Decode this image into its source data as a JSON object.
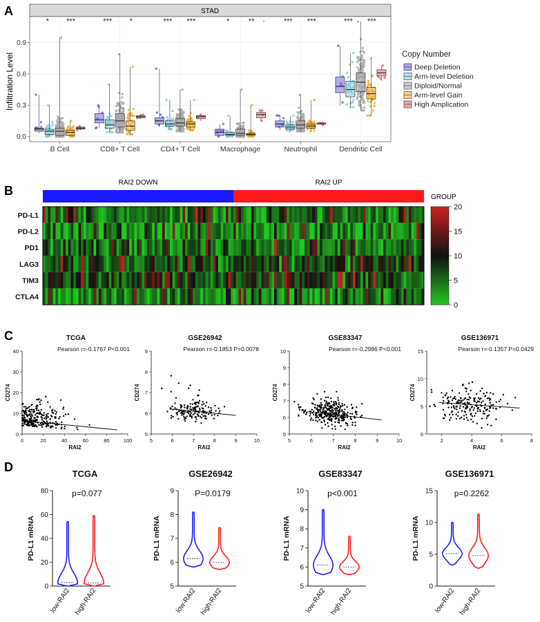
{
  "panels": {
    "A": {
      "letter": "A"
    },
    "B": {
      "letter": "B"
    },
    "C": {
      "letter": "C"
    },
    "D": {
      "letter": "D"
    }
  },
  "colors": {
    "deep": "#6b6be0",
    "arm_del": "#87cde0",
    "diploid": "#aaaaaa",
    "arm_gain": "#f0b030",
    "high": "#e86a6a",
    "down": "#1a1aff",
    "up": "#ff1a1a",
    "heat_low": "#22c722",
    "heat_mid": "#111111",
    "heat_high": "#cc2222"
  },
  "chart_data": [
    {
      "id": "A",
      "type": "box",
      "title": "STAD",
      "ylabel": "Infiltration Level",
      "ylim": [
        -0.05,
        1.15
      ],
      "yticks": [
        "0.0",
        "0.3",
        "0.6",
        "0.9"
      ],
      "categories": [
        "B Cell",
        "CD8+ T Cell",
        "CD4+ T Cell",
        "Macrophage",
        "Neutrophil",
        "Dendritic Cell"
      ],
      "significance": [
        [
          "*",
          "***"
        ],
        [
          "***",
          "*"
        ],
        [
          "***",
          "***"
        ],
        [
          "*",
          "**",
          "·"
        ],
        [
          "***",
          "***"
        ],
        [
          "***",
          "***"
        ]
      ],
      "legend_title": "Copy Number",
      "legend_position": "right",
      "series": [
        {
          "name": "Deep Deletion",
          "boxes": [
            [
              0.03,
              0.05,
              0.07,
              0.08,
              0.4
            ],
            [
              0.08,
              0.13,
              0.16,
              0.22,
              0.3
            ],
            [
              0.09,
              0.12,
              0.15,
              0.18,
              0.65
            ],
            [
              0.0,
              0.01,
              0.04,
              0.07,
              0.12
            ],
            [
              0.06,
              0.09,
              0.12,
              0.15,
              0.2
            ],
            [
              0.3,
              0.42,
              0.48,
              0.57,
              0.87
            ]
          ]
        },
        {
          "name": "Arm-level Deletion",
          "boxes": [
            [
              0.0,
              0.02,
              0.05,
              0.07,
              0.3
            ],
            [
              0.04,
              0.08,
              0.11,
              0.16,
              0.5
            ],
            [
              0.07,
              0.1,
              0.12,
              0.15,
              0.35
            ],
            [
              0.0,
              0.01,
              0.02,
              0.04,
              0.2
            ],
            [
              0.05,
              0.07,
              0.09,
              0.11,
              0.2
            ],
            [
              0.28,
              0.38,
              0.45,
              0.53,
              0.8
            ]
          ]
        },
        {
          "name": "Diploid/Normal",
          "boxes": [
            [
              0.0,
              0.01,
              0.05,
              0.08,
              0.95
            ],
            [
              0.04,
              0.09,
              0.15,
              0.22,
              0.79
            ],
            [
              0.05,
              0.1,
              0.13,
              0.17,
              0.45
            ],
            [
              0.0,
              0.01,
              0.03,
              0.07,
              0.45
            ],
            [
              0.05,
              0.08,
              0.11,
              0.15,
              0.4
            ],
            [
              0.25,
              0.43,
              0.52,
              0.61,
              1.1
            ]
          ]
        },
        {
          "name": "Arm-level Gain",
          "boxes": [
            [
              0.0,
              0.01,
              0.04,
              0.06,
              0.15
            ],
            [
              0.02,
              0.06,
              0.1,
              0.15,
              0.67
            ],
            [
              0.06,
              0.09,
              0.12,
              0.14,
              0.35
            ],
            [
              0.0,
              0.01,
              0.02,
              0.03,
              0.3
            ],
            [
              0.05,
              0.08,
              0.1,
              0.12,
              0.35
            ],
            [
              0.2,
              0.36,
              0.41,
              0.47,
              0.75
            ]
          ]
        },
        {
          "name": "High Amplication",
          "boxes": [
            [
              0.06,
              0.07,
              0.08,
              0.09,
              0.1
            ],
            [
              0.17,
              0.18,
              0.19,
              0.2,
              0.21
            ],
            [
              0.15,
              0.17,
              0.19,
              0.2,
              0.21
            ],
            [
              0.15,
              0.18,
              0.21,
              0.23,
              0.25
            ],
            [
              0.11,
              0.12,
              0.12,
              0.13,
              0.13
            ],
            [
              0.53,
              0.58,
              0.61,
              0.64,
              0.68
            ]
          ]
        }
      ]
    },
    {
      "id": "B",
      "type": "heatmap",
      "group_labels": [
        "RAI2 DOWN",
        "RAI2 UP"
      ],
      "group_legend": "GROUP",
      "rows": [
        "PD-L1",
        "PD-L2",
        "PD1",
        "LAG3",
        "TIM3",
        "CTLA4"
      ],
      "colorbar_ticks": [
        "20",
        "15",
        "10",
        "5",
        "0"
      ],
      "range": [
        0,
        20
      ]
    },
    {
      "id": "C",
      "type": "scatter",
      "plots": [
        {
          "title": "TCGA",
          "stat": "Pearson r=-0.1767 P<0.001",
          "xlabel": "RAI2",
          "ylabel": "CD274",
          "xticks": [
            "0",
            "20",
            "40",
            "60",
            "80",
            "100"
          ],
          "yticks": [
            "0",
            "10",
            "20",
            "30",
            "40"
          ],
          "xlim": [
            0,
            100
          ],
          "ylim": [
            0,
            40
          ],
          "line": [
            [
              0,
              6.5
            ],
            [
              90,
              2.0
            ]
          ]
        },
        {
          "title": "GSE26942",
          "stat": "Pearson r=-0.1853 P=0.0078",
          "xlabel": "RAI2",
          "ylabel": "CD274",
          "xticks": [
            "5",
            "6",
            "7",
            "8",
            "9",
            "10"
          ],
          "yticks": [
            "5",
            "6",
            "7",
            "8",
            "9"
          ],
          "xlim": [
            5,
            10
          ],
          "ylim": [
            5,
            9
          ],
          "line": [
            [
              6,
              6.2
            ],
            [
              9,
              5.9
            ]
          ]
        },
        {
          "title": "GSE83347",
          "stat": "Pearson r=-0.2986 P<0.001",
          "xlabel": "RAI2",
          "ylabel": "CD274",
          "xticks": [
            "5",
            "6",
            "7",
            "8",
            "9",
            "10"
          ],
          "yticks": [
            "5",
            "6",
            "7",
            "8",
            "9",
            "10"
          ],
          "xlim": [
            5,
            10
          ],
          "ylim": [
            5,
            10
          ],
          "line": [
            [
              5.8,
              6.35
            ],
            [
              9.2,
              5.85
            ]
          ]
        },
        {
          "title": "GSE136971",
          "stat": "Pearson r=-0.1357 P=0.0429",
          "xlabel": "RAI2",
          "ylabel": "CD274",
          "xticks": [
            "2",
            "4",
            "6",
            "8"
          ],
          "yticks": [
            "0",
            "5",
            "10",
            "15"
          ],
          "xlim": [
            1,
            8
          ],
          "ylim": [
            0,
            15
          ],
          "line": [
            [
              1.8,
              5.7
            ],
            [
              7.2,
              4.7
            ]
          ]
        }
      ]
    },
    {
      "id": "D",
      "type": "violin",
      "plots": [
        {
          "title": "TCGA",
          "p": "p=0.077",
          "ylabel": "PD-L1 mRNA",
          "categories": [
            "low-RAI2",
            "high-RAI2"
          ],
          "yticks": [
            "0",
            "20",
            "40",
            "60",
            "80"
          ],
          "ylim": [
            0,
            80
          ],
          "violins": [
            {
              "min": 0,
              "max": 54,
              "median": 3
            },
            {
              "min": 0,
              "max": 59,
              "median": 2.5
            }
          ]
        },
        {
          "title": "GSE26942",
          "p": "P=0.0179",
          "ylabel": "PD-L1 mRNA",
          "categories": [
            "low-RAI2",
            "high-RAI2"
          ],
          "yticks": [
            "5",
            "6",
            "7",
            "8",
            "9"
          ],
          "ylim": [
            5,
            9
          ],
          "violins": [
            {
              "min": 5.8,
              "max": 8.1,
              "median": 6.15
            },
            {
              "min": 5.7,
              "max": 7.45,
              "median": 6.0
            }
          ]
        },
        {
          "title": "GSE83347",
          "p": "p<0.001",
          "ylabel": "PD-L1 mRNA",
          "categories": [
            "low-RAI2",
            "high-RAI2"
          ],
          "yticks": [
            "5",
            "6",
            "7",
            "8",
            "9",
            "10"
          ],
          "ylim": [
            5,
            10
          ],
          "violins": [
            {
              "min": 5.6,
              "max": 9.0,
              "median": 6.1
            },
            {
              "min": 5.6,
              "max": 7.6,
              "median": 6.0
            }
          ]
        },
        {
          "title": "GSE136971",
          "p": "p=0.2262",
          "ylabel": "PD-L1 mRNA",
          "categories": [
            "low-RAI2",
            "high-RAI2"
          ],
          "yticks": [
            "0",
            "5",
            "10",
            "15"
          ],
          "ylim": [
            0,
            15
          ],
          "violins": [
            {
              "min": 3.3,
              "max": 10,
              "median": 5.1
            },
            {
              "min": 2.8,
              "max": 11.3,
              "median": 4.8
            }
          ]
        }
      ]
    }
  ]
}
